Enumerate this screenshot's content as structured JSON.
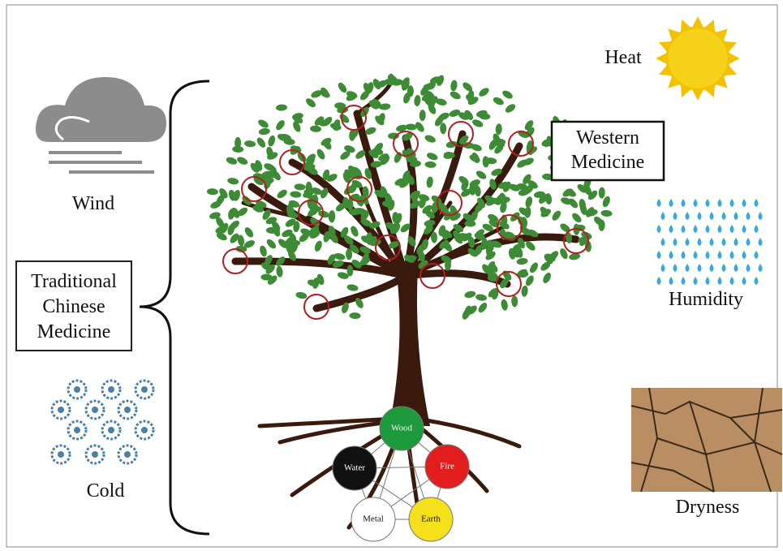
{
  "factors": {
    "wind": "Wind",
    "cold": "Cold",
    "heat": "Heat",
    "humidity": "Humidity",
    "dryness": "Dryness"
  },
  "traditional_chinese_medicine": [
    "Traditional",
    "Chinese",
    "Medicine"
  ],
  "western_medicine": [
    "Western",
    "Medicine"
  ],
  "elements": {
    "wood": "Wood",
    "water": "Water",
    "fire": "Fire",
    "metal": "Metal",
    "earth": "Earth"
  }
}
